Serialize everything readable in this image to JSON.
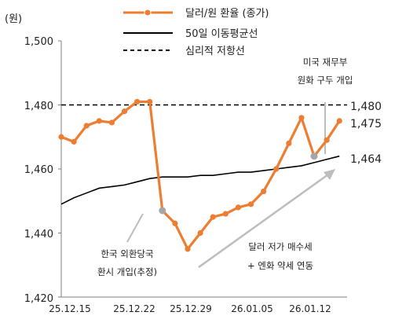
{
  "chart_data": {
    "type": "line",
    "ylabel": "(원)",
    "ylim": [
      1420,
      1500
    ],
    "yticks": [
      "1,420",
      "1,440",
      "1,460",
      "1,480",
      "1,500"
    ],
    "xticks": [
      "25.12.15",
      "25.12.22",
      "25.12.29",
      "26.01.05",
      "26.01.12"
    ],
    "series": [
      {
        "name": "달러/원 환율 (종가)",
        "color": "#ED7D31",
        "dates": [
          "25.12.12",
          "25.12.15",
          "25.12.16",
          "25.12.17",
          "25.12.18",
          "25.12.19",
          "25.12.22",
          "25.12.23",
          "25.12.24",
          "25.12.26",
          "25.12.29",
          "25.12.30",
          "26.01.02",
          "26.01.05",
          "26.01.06",
          "26.01.07",
          "26.01.08",
          "26.01.09",
          "26.01.12",
          "26.01.13",
          "26.01.14",
          "26.01.15",
          "26.01.16"
        ],
        "values": [
          1470,
          1468.5,
          1473.5,
          1475,
          1474.5,
          1478,
          1481,
          1481,
          1447,
          1443,
          1435,
          1440,
          1445,
          1446,
          1448,
          1449,
          1453,
          1460,
          1468,
          1476,
          1464,
          1469,
          1475
        ]
      },
      {
        "name": "50일 이동평균선",
        "color": "#000000",
        "dates": [
          "25.12.12",
          "25.12.15",
          "25.12.16",
          "25.12.17",
          "25.12.18",
          "25.12.19",
          "25.12.22",
          "25.12.23",
          "25.12.24",
          "25.12.26",
          "25.12.29",
          "25.12.30",
          "26.01.02",
          "26.01.05",
          "26.01.06",
          "26.01.07",
          "26.01.08",
          "26.01.09",
          "26.01.12",
          "26.01.13",
          "26.01.14",
          "26.01.15",
          "26.01.16"
        ],
        "values": [
          1449,
          1451,
          1452.5,
          1454,
          1454.5,
          1455,
          1456,
          1457,
          1457.5,
          1457.5,
          1457.5,
          1458,
          1458,
          1458.5,
          1459,
          1459,
          1459.5,
          1460,
          1460.5,
          1461,
          1462,
          1463,
          1464
        ]
      },
      {
        "name": "심리적 저항선",
        "color": "#000000",
        "dashed": true,
        "values": [
          1480,
          1480
        ]
      }
    ],
    "end_labels": [
      "1,480",
      "1,475",
      "1,464"
    ],
    "annotations": {
      "intervention": [
        "한국 외환당국",
        "환시 개입(추정)"
      ],
      "treasury": [
        "미국 재무부",
        "원화 구두 개입"
      ],
      "trend": [
        "달러 저가 매수세",
        "+ 엔화 약세 연동"
      ]
    }
  }
}
